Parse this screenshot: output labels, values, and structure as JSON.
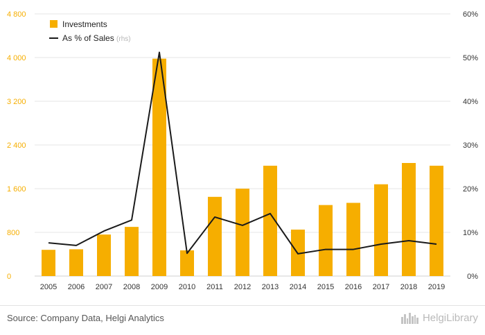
{
  "chart_data": {
    "type": "bar",
    "categories": [
      "2005",
      "2006",
      "2007",
      "2008",
      "2009",
      "2010",
      "2011",
      "2012",
      "2013",
      "2014",
      "2015",
      "2016",
      "2017",
      "2018",
      "2019"
    ],
    "series": [
      {
        "name": "Investments",
        "type": "bar",
        "axis": "left",
        "values": [
          480,
          490,
          760,
          900,
          3980,
          470,
          1450,
          1600,
          2020,
          850,
          1300,
          1340,
          1680,
          2070,
          2020
        ]
      },
      {
        "name": "As % of Sales",
        "name_suffix": "(rhs)",
        "type": "line",
        "axis": "right",
        "values": [
          7.6,
          7.0,
          10.3,
          12.8,
          51.2,
          5.2,
          13.5,
          11.6,
          14.3,
          5.1,
          6.1,
          6.1,
          7.3,
          8.1,
          7.3
        ]
      }
    ],
    "ylim_left": [
      0,
      4800
    ],
    "yticks_left": [
      "0",
      "800",
      "1 600",
      "2 400",
      "3 200",
      "4 000",
      "4 800"
    ],
    "ylim_right": [
      0,
      60
    ],
    "yticks_right": [
      "0%",
      "10%",
      "20%",
      "30%",
      "40%",
      "50%",
      "60%"
    ],
    "legend_position": "top-left",
    "grid": "horizontal",
    "colors": {
      "bar": "#f6ae00",
      "line": "#1a1a1a",
      "left_ticks": "#f6ae00",
      "grid": "#e6e6e6"
    }
  },
  "footer": {
    "source": "Source: Company Data, Helgi Analytics",
    "brand": "HelgiLibrary"
  }
}
